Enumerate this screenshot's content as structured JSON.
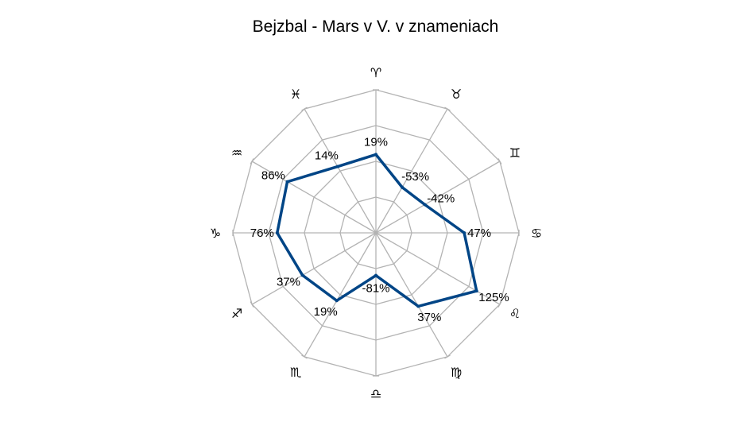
{
  "chart_data": {
    "type": "radar",
    "title": "Bejzbal - Mars v V. v znameniach",
    "categories": [
      "♈",
      "♓",
      "♒",
      "♑",
      "♐",
      "♏",
      "♎",
      "♍",
      "♌",
      "♋",
      "♊",
      "♉"
    ],
    "values": [
      19,
      14,
      86,
      76,
      37,
      19,
      -81,
      37,
      125,
      47,
      -42,
      -53
    ],
    "value_labels": [
      "19%",
      "14%",
      "86%",
      "76%",
      "37%",
      "19%",
      "-81%",
      "37%",
      "125%",
      "47%",
      "-42%",
      "-53%"
    ],
    "rlim": [
      -200,
      200
    ],
    "rings": [
      -200,
      -100,
      0,
      100,
      200
    ],
    "series_color": "#004586",
    "grid_color": "#b3b3b3"
  }
}
